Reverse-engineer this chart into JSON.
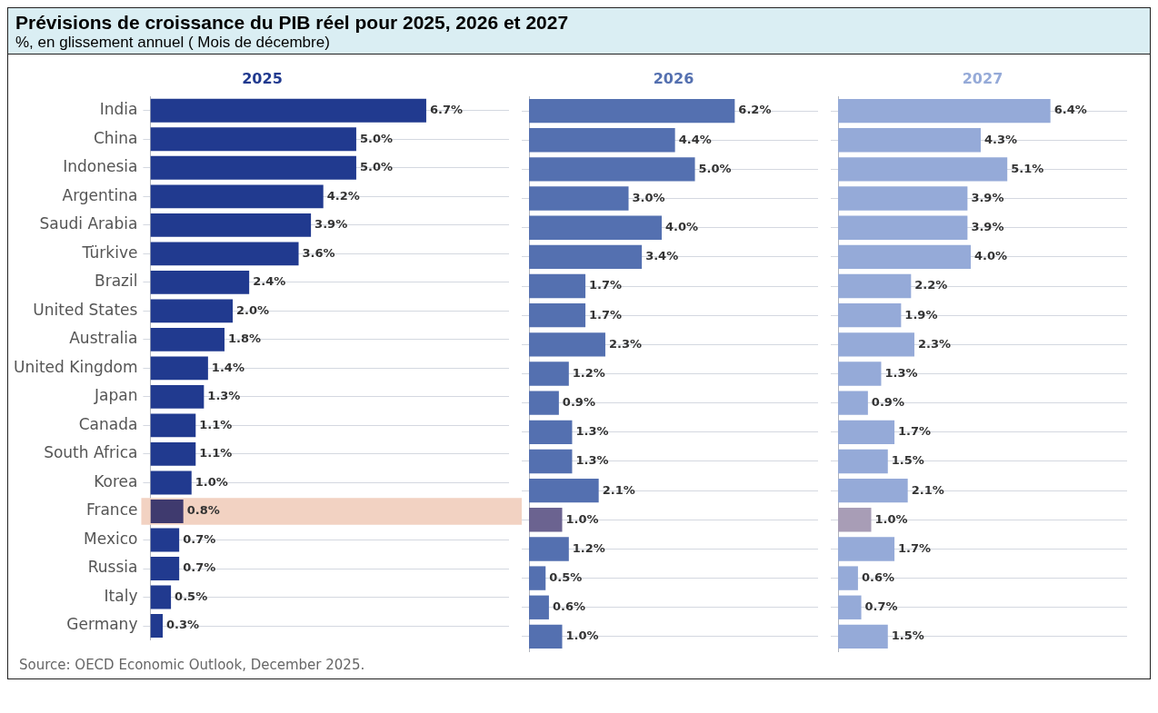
{
  "chart_data": [
    {
      "type": "bar",
      "orientation": "horizontal",
      "title": "Prévisions de croissance du PIB réel pour 2025, 2026 et 2027",
      "subtitle": "%, en glissement annuel ( Mois de décembre)",
      "annotations": [
        "Source: OECD Economic Outlook, December 2025."
      ],
      "categories": [
        "India",
        "China",
        "Indonesia",
        "Argentina",
        "Saudi Arabia",
        "Türkive",
        "Brazil",
        "United States",
        "Australia",
        "United Kingdom",
        "Japan",
        "Canada",
        "South Africa",
        "Korea",
        "France",
        "Mexico",
        "Russia",
        "Italy",
        "Germany"
      ],
      "tick_labels": "y",
      "grid": "y",
      "legend": "top",
      "bands": [
        {
          "axis": "y",
          "from": "France",
          "to": "France",
          "color": "#f2d2c2"
        }
      ],
      "series": [
        {
          "name": "2025",
          "color": "#213a8f",
          "values": [
            6.7,
            5.0,
            5.0,
            4.2,
            3.9,
            3.6,
            2.4,
            2.0,
            1.8,
            1.4,
            1.3,
            1.1,
            1.1,
            1.0,
            0.8,
            0.7,
            0.7,
            0.5,
            0.3
          ],
          "colors": [
            "#213a8f",
            "#213a8f",
            "#213a8f",
            "#213a8f",
            "#213a8f",
            "#213a8f",
            "#213a8f",
            "#213a8f",
            "#213a8f",
            "#213a8f",
            "#213a8f",
            "#213a8f",
            "#213a8f",
            "#213a8f",
            "#3f3a6e",
            "#213a8f",
            "#213a8f",
            "#213a8f",
            "#213a8f"
          ],
          "value_labels": [
            "6.7%",
            "5.0%",
            "5.0%",
            "4.2%",
            "3.9%",
            "3.6%",
            "2.4%",
            "2.0%",
            "1.8%",
            "1.4%",
            "1.3%",
            "1.1%",
            "1.1%",
            "1.0%",
            "0.8%",
            "0.7%",
            "0.7%",
            "0.5%",
            "0.3%"
          ]
        }
      ]
    },
    {
      "type": "bar",
      "orientation": "horizontal",
      "categories": [
        null,
        null,
        null,
        null,
        null,
        null,
        null,
        null,
        null,
        null,
        null,
        null,
        null,
        null,
        null,
        null,
        null,
        null,
        null
      ],
      "tick_labels": false,
      "grid": "y",
      "legend": "top",
      "series": [
        {
          "name": "2026",
          "color": "#5470b0",
          "values": [
            6.2,
            4.4,
            5.0,
            3.0,
            4.0,
            3.4,
            1.7,
            1.7,
            2.3,
            1.2,
            0.9,
            1.3,
            1.3,
            2.1,
            1.0,
            1.2,
            0.5,
            0.6,
            1.0
          ],
          "colors": [
            "#5470b0",
            "#5470b0",
            "#5470b0",
            "#5470b0",
            "#5470b0",
            "#5470b0",
            "#5470b0",
            "#5470b0",
            "#5470b0",
            "#5470b0",
            "#5470b0",
            "#5470b0",
            "#5470b0",
            "#5470b0",
            "#6b6390",
            "#5470b0",
            "#5470b0",
            "#5470b0",
            "#5470b0"
          ],
          "value_labels": [
            "6.2%",
            "4.4%",
            "5.0%",
            "3.0%",
            "4.0%",
            "3.4%",
            "1.7%",
            "1.7%",
            "2.3%",
            "1.2%",
            "0.9%",
            "1.3%",
            "1.3%",
            "2.1%",
            "1.0%",
            "1.2%",
            "0.5%",
            "0.6%",
            "1.0%"
          ]
        }
      ]
    },
    {
      "type": "bar",
      "orientation": "horizontal",
      "categories": [
        null,
        null,
        null,
        null,
        null,
        null,
        null,
        null,
        null,
        null,
        null,
        null,
        null,
        null,
        null,
        null,
        null,
        null,
        null
      ],
      "tick_labels": false,
      "grid": "y",
      "legend": "top",
      "series": [
        {
          "name": "2027",
          "color": "#95aad8",
          "values": [
            6.4,
            4.3,
            5.1,
            3.9,
            3.9,
            4.0,
            2.2,
            1.9,
            2.3,
            1.3,
            0.9,
            1.7,
            1.5,
            2.1,
            1.0,
            1.7,
            0.6,
            0.7,
            1.5
          ],
          "colors": [
            "#95aad8",
            "#95aad8",
            "#95aad8",
            "#95aad8",
            "#95aad8",
            "#95aad8",
            "#95aad8",
            "#95aad8",
            "#95aad8",
            "#95aad8",
            "#95aad8",
            "#95aad8",
            "#95aad8",
            "#95aad8",
            "#a89db6",
            "#95aad8",
            "#95aad8",
            "#95aad8",
            "#95aad8"
          ],
          "value_labels": [
            "6.4%",
            "4.3%",
            "5.1%",
            "3.9%",
            "3.9%",
            "4.0%",
            "2.2%",
            "1.9%",
            "2.3%",
            "1.3%",
            "0.9%",
            "1.7%",
            "1.5%",
            "2.1%",
            "1.0%",
            "1.7%",
            "0.6%",
            "0.7%",
            "1.5%"
          ]
        }
      ]
    }
  ]
}
